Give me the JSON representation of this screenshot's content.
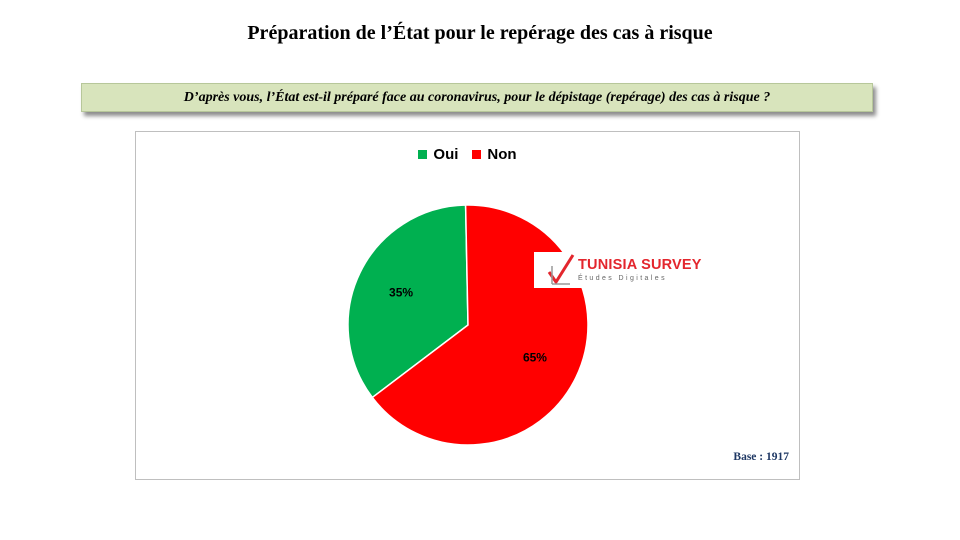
{
  "slide": {
    "title": "Préparation de l’État pour le repérage des cas à risque",
    "question": "D’après vous, l’État est-il préparé face au coronavirus, pour le dépistage (repérage)  des cas à risque ?"
  },
  "chart_data": {
    "type": "pie",
    "categories": [
      "Oui",
      "Non"
    ],
    "values": [
      35,
      65
    ],
    "labels": [
      "35%",
      "65%"
    ],
    "colors": [
      "#00b050",
      "#ff0000"
    ],
    "legend_position": "top-center",
    "base_label": "Base :  1917"
  },
  "logo": {
    "title": "TUNISIA SURVEY",
    "subtitle": "Études Digitales"
  }
}
